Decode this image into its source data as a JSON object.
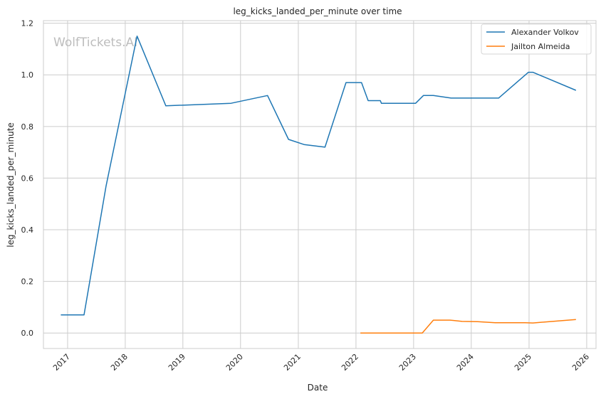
{
  "chart_data": {
    "type": "line",
    "title": "leg_kicks_landed_per_minute over time",
    "xlabel": "Date",
    "ylabel": "leg_kicks_landed_per_minute",
    "watermark": "WolfTickets.AI",
    "grid": true,
    "legend_position": "top-right",
    "x_ticks": [
      "2017",
      "2018",
      "2019",
      "2020",
      "2021",
      "2022",
      "2023",
      "2024",
      "2025",
      "2026"
    ],
    "y_ticks": [
      "0.0",
      "0.2",
      "0.4",
      "0.6",
      "0.8",
      "1.0",
      "1.2"
    ],
    "xlim": [
      "2016-08-01",
      "2026-03-01"
    ],
    "ylim": [
      -0.06,
      1.21
    ],
    "series": [
      {
        "name": "Alexander Volkov",
        "color": "#1f77b4",
        "points": [
          [
            "2016-11-19",
            0.07
          ],
          [
            "2017-04-15",
            0.07
          ],
          [
            "2017-09-02",
            0.57
          ],
          [
            "2018-03-17",
            1.15
          ],
          [
            "2018-09-15",
            0.88
          ],
          [
            "2019-11-02",
            0.89
          ],
          [
            "2020-06-20",
            0.92
          ],
          [
            "2020-10-31",
            0.75
          ],
          [
            "2021-02-06",
            0.73
          ],
          [
            "2021-06-19",
            0.72
          ],
          [
            "2021-10-30",
            0.97
          ],
          [
            "2022-02-05",
            0.97
          ],
          [
            "2022-03-19",
            0.9
          ],
          [
            "2022-06-04",
            0.9
          ],
          [
            "2022-06-11",
            0.89
          ],
          [
            "2023-01-14",
            0.89
          ],
          [
            "2023-03-04",
            0.92
          ],
          [
            "2023-05-06",
            0.92
          ],
          [
            "2023-08-26",
            0.91
          ],
          [
            "2024-06-15",
            0.91
          ],
          [
            "2024-06-22",
            0.91
          ],
          [
            "2024-12-28",
            1.01
          ],
          [
            "2025-01-25",
            1.01
          ],
          [
            "2025-10-25",
            0.94
          ]
        ]
      },
      {
        "name": "Jailton Almeida",
        "color": "#ff7f0e",
        "points": [
          [
            "2022-01-29",
            0.0
          ],
          [
            "2023-02-25",
            0.0
          ],
          [
            "2023-05-06",
            0.05
          ],
          [
            "2023-08-19",
            0.05
          ],
          [
            "2023-11-04",
            0.045
          ],
          [
            "2024-02-10",
            0.044
          ],
          [
            "2024-06-01",
            0.04
          ],
          [
            "2024-12-07",
            0.04
          ],
          [
            "2025-01-25",
            0.039
          ],
          [
            "2025-10-25",
            0.052
          ]
        ]
      }
    ]
  }
}
